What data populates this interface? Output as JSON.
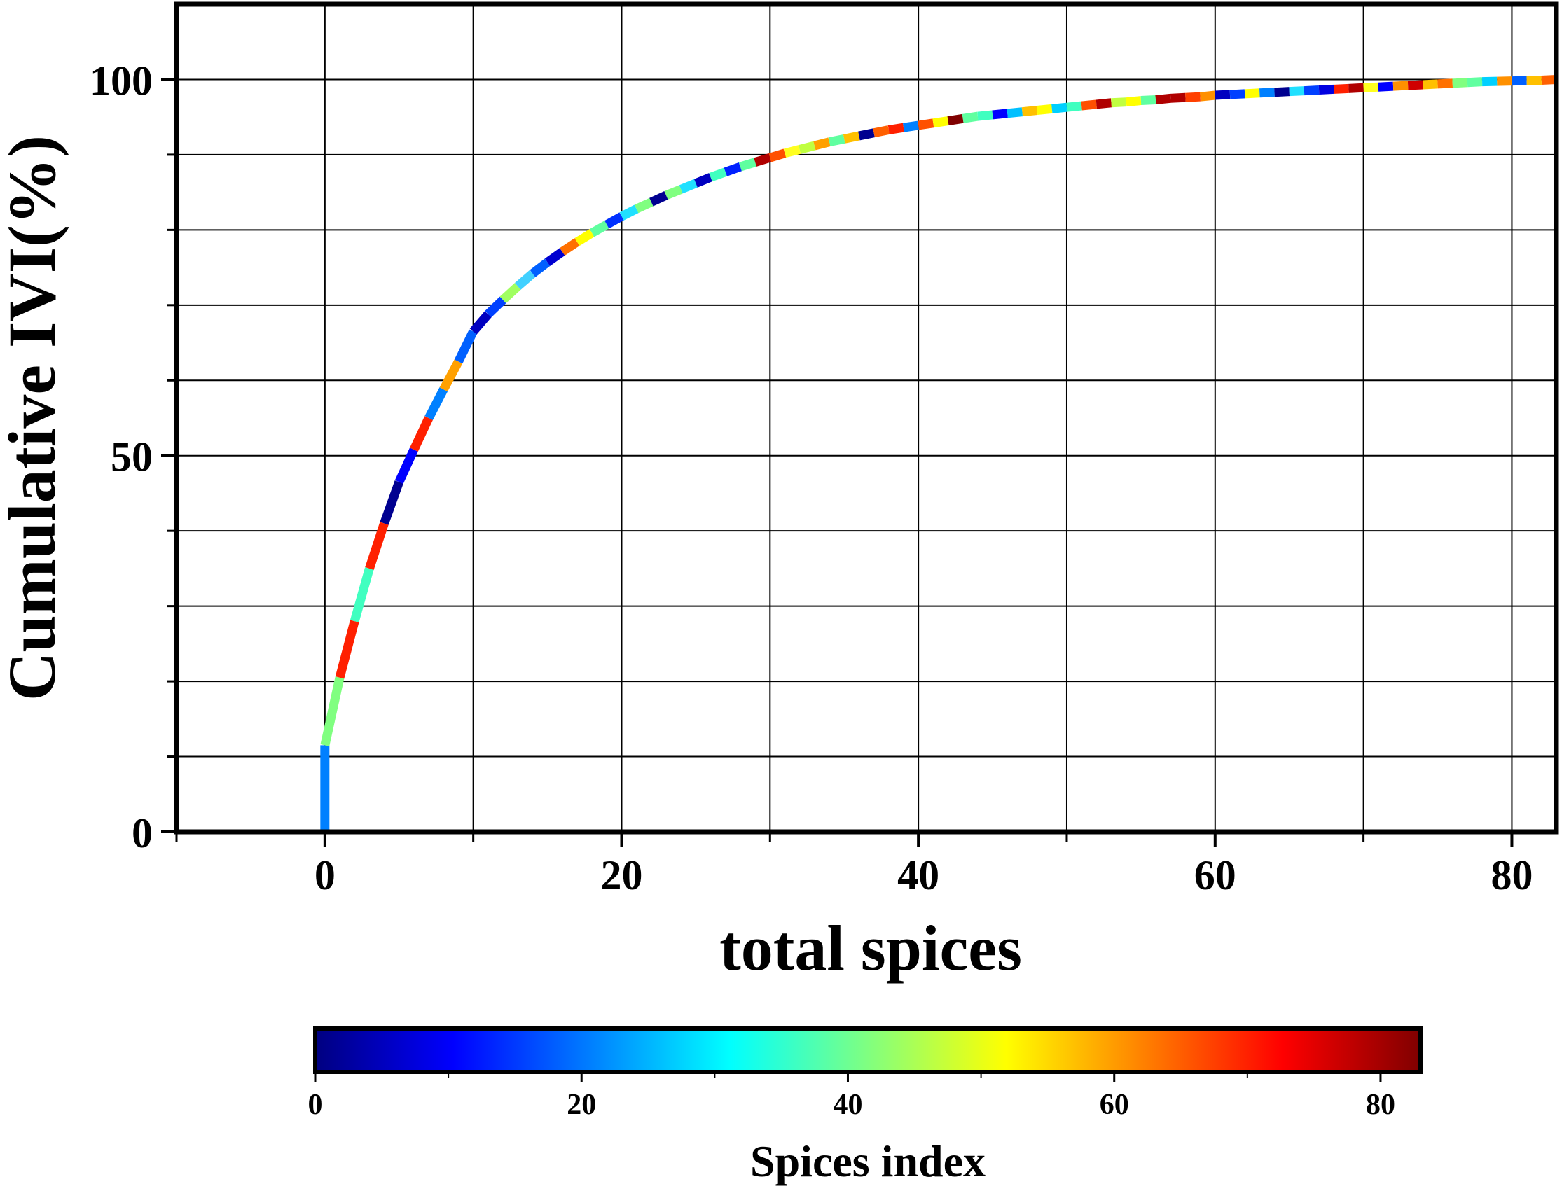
{
  "chart_data": {
    "type": "line",
    "xlabel": "total spices",
    "ylabel": "Cumulative IVI(%)",
    "xlim": [
      -10,
      83
    ],
    "ylim": [
      0,
      110
    ],
    "x_ticks": [
      0,
      20,
      40,
      60,
      80
    ],
    "x_minor_ticks": [
      -10,
      10,
      30,
      50,
      70
    ],
    "y_ticks": [
      0,
      50,
      100
    ],
    "y_minor_ticks": [
      10,
      20,
      30,
      40,
      60,
      70,
      80,
      90
    ],
    "grid": true,
    "series": [
      {
        "x": [
          0,
          0,
          1,
          2,
          3,
          4,
          5,
          6,
          7,
          8,
          9,
          10,
          11,
          12,
          13,
          14,
          15,
          16,
          17,
          18,
          19,
          20,
          21,
          22,
          23,
          24,
          25,
          26,
          27,
          28,
          29,
          30,
          31,
          32,
          33,
          34,
          35,
          36,
          37,
          38,
          39,
          40,
          41,
          42,
          43,
          44,
          45,
          46,
          47,
          48,
          49,
          50,
          51,
          52,
          53,
          54,
          55,
          56,
          57,
          58,
          59,
          60,
          61,
          62,
          63,
          64,
          65,
          66,
          67,
          68,
          69,
          70,
          71,
          72,
          73,
          74,
          75,
          76,
          77,
          78,
          79,
          80,
          81,
          82,
          83
        ],
        "y": [
          0,
          11.5,
          20.5,
          28,
          35,
          41,
          46.5,
          50.8,
          55,
          58.8,
          62.5,
          66.5,
          68.8,
          70.7,
          72.5,
          74.2,
          75.7,
          77.1,
          78.4,
          79.6,
          80.7,
          81.8,
          82.8,
          83.7,
          84.6,
          85.4,
          86.2,
          87,
          87.7,
          88.4,
          89,
          89.6,
          90.2,
          90.7,
          91.2,
          91.7,
          92.1,
          92.5,
          92.9,
          93.3,
          93.6,
          93.9,
          94.2,
          94.5,
          94.8,
          95.1,
          95.3,
          95.5,
          95.7,
          95.9,
          96.1,
          96.3,
          96.5,
          96.7,
          96.9,
          97,
          97.2,
          97.3,
          97.5,
          97.6,
          97.7,
          97.9,
          98,
          98.1,
          98.2,
          98.3,
          98.4,
          98.5,
          98.6,
          98.7,
          98.8,
          98.9,
          99,
          99.1,
          99.2,
          99.3,
          99.4,
          99.5,
          99.6,
          99.7,
          99.75,
          99.8,
          99.85,
          99.9,
          100
        ],
        "segment_colors": [
          "#0080ff",
          "#80ff80",
          "#ff2000",
          "#40ffc0",
          "#ff2000",
          "#000090",
          "#0000ff",
          "#ff2000",
          "#0080ff",
          "#ffa000",
          "#0060ff",
          "#0000c0",
          "#0040ff",
          "#a0ff60",
          "#40d0ff",
          "#0060ff",
          "#0000d0",
          "#ff7000",
          "#ffff00",
          "#60ffa0",
          "#0030ff",
          "#20e0ff",
          "#80ff80",
          "#000090",
          "#80ff80",
          "#20e0ff",
          "#0000c0",
          "#40ffc0",
          "#0020ff",
          "#60ffa0",
          "#b00000",
          "#ff5000",
          "#ffff20",
          "#c0ff40",
          "#ffa000",
          "#60ffa0",
          "#ffc000",
          "#000090",
          "#ff6000",
          "#ff2000",
          "#0080ff",
          "#ff5000",
          "#ffff00",
          "#800000",
          "#60ffa0",
          "#40ffc0",
          "#0000ff",
          "#00c0ff",
          "#ffc000",
          "#ffff00",
          "#00d0ff",
          "#40ffc0",
          "#ff5000",
          "#b00000",
          "#c0ff40",
          "#ffff00",
          "#60ffa0",
          "#b00000",
          "#b00000",
          "#ff4000",
          "#ff9000",
          "#0000c0",
          "#0040ff",
          "#ffff00",
          "#0080ff",
          "#000090",
          "#20e0ff",
          "#0040ff",
          "#0000e0",
          "#ff2000",
          "#b00000",
          "#ffff20",
          "#0000ff",
          "#ff9000",
          "#d00000",
          "#ffc000",
          "#ff7000",
          "#80ff80",
          "#60ffa0",
          "#00d0ff",
          "#ff9000",
          "#0060ff",
          "#ffc000",
          "#ff6000",
          "#ff6000"
        ]
      }
    ],
    "colorbar": {
      "label": "Spices index",
      "range": [
        0,
        83
      ],
      "ticks": [
        0,
        20,
        40,
        60,
        80
      ],
      "minor_ticks": [
        10,
        30,
        50,
        70
      ],
      "colormap": [
        "#000080",
        "#0000ff",
        "#0080ff",
        "#00ffff",
        "#80ff80",
        "#ffff00",
        "#ff8000",
        "#ff0000",
        "#800000"
      ]
    }
  }
}
